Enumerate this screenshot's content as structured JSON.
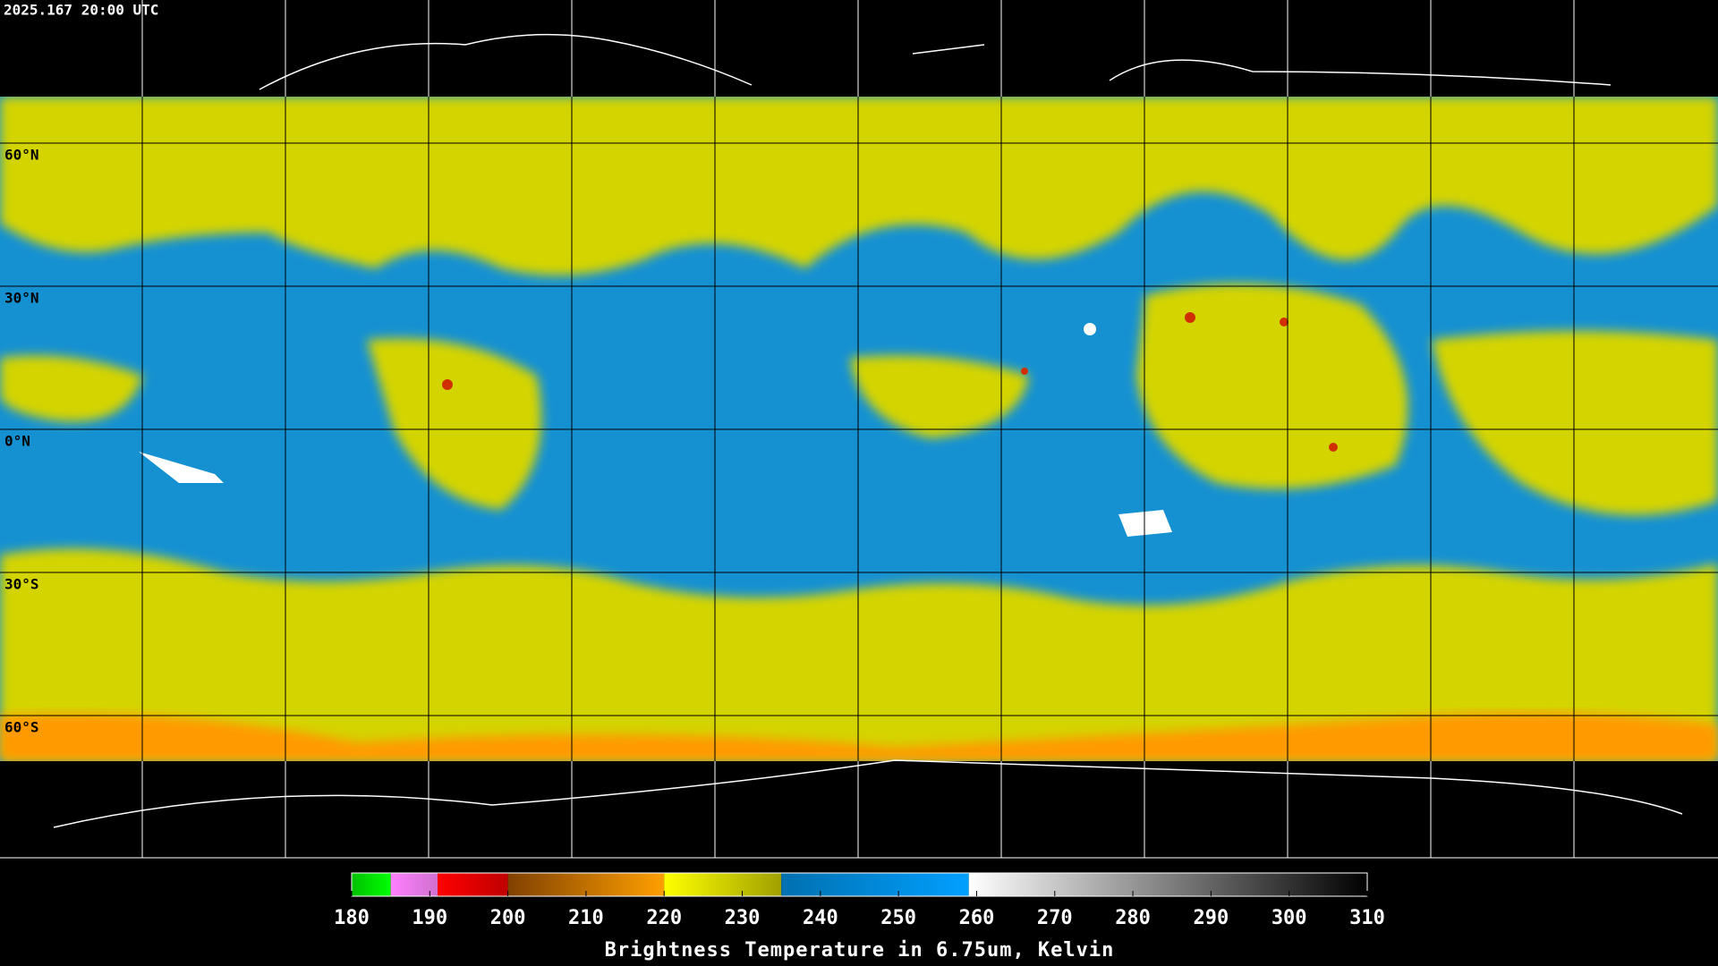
{
  "timestamp": "2025.167 20:00 UTC",
  "latitudes": [
    {
      "value": 60,
      "label": "60°N"
    },
    {
      "value": 30,
      "label": "30°N"
    },
    {
      "value": 0,
      "label": "0°N"
    },
    {
      "value": -30,
      "label": "30°S"
    },
    {
      "value": -60,
      "label": "60°S"
    }
  ],
  "colorbar": {
    "title": "Brightness Temperature in 6.75um, Kelvin",
    "range": [
      180,
      310
    ],
    "ticks": [
      180,
      190,
      200,
      210,
      220,
      230,
      240,
      250,
      260,
      270,
      280,
      290,
      300,
      310
    ],
    "segments": [
      {
        "from": 180,
        "to": 185,
        "colors": [
          "#00c000",
          "#00ff00"
        ]
      },
      {
        "from": 185,
        "to": 191,
        "colors": [
          "#ff80ff",
          "#d070d0"
        ]
      },
      {
        "from": 191,
        "to": 200,
        "colors": [
          "#ff0000",
          "#c00000"
        ]
      },
      {
        "from": 200,
        "to": 220,
        "colors": [
          "#804000",
          "#ffa000"
        ]
      },
      {
        "from": 220,
        "to": 235,
        "colors": [
          "#ffff00",
          "#a0a000"
        ]
      },
      {
        "from": 235,
        "to": 259,
        "colors": [
          "#0070b0",
          "#00a0ff"
        ]
      },
      {
        "from": 259,
        "to": 310,
        "colors": [
          "#ffffff",
          "#000000"
        ]
      }
    ]
  }
}
